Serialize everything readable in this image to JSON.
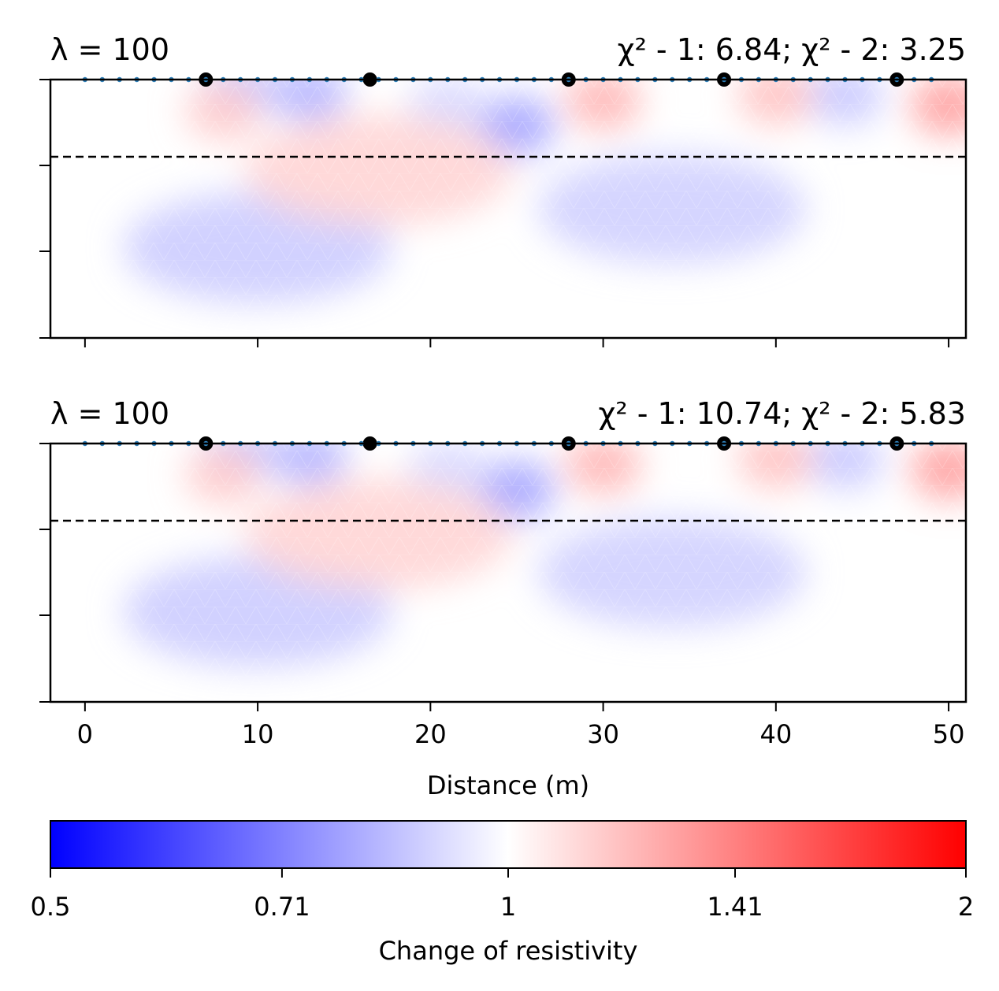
{
  "chart_data": {
    "type": "heatmap",
    "colormap": "bwr",
    "panels": [
      {
        "title_left": "λ = 100",
        "title_right": "χ² - 1: 6.84; χ² - 2: 3.25",
        "lambda": 100,
        "chi2_1": 6.84,
        "chi2_2": 3.25
      },
      {
        "title_left": "λ = 100",
        "title_right": "χ² - 1: 10.74; χ² - 2: 5.83",
        "lambda": 100,
        "chi2_1": 10.74,
        "chi2_2": 5.83
      }
    ],
    "xlim": [
      -2,
      51
    ],
    "xticks": [
      0,
      10,
      20,
      30,
      40,
      50
    ],
    "xlabel": "Distance (m)",
    "electrodes": {
      "start": 0,
      "end": 49,
      "spacing": 1
    },
    "boreholes_x": [
      7,
      16.5,
      28,
      37,
      47
    ],
    "colorbar": {
      "label": "Change of resistivity",
      "min": 0.5,
      "max": 2,
      "scale": "log",
      "ticks": [
        0.5,
        0.71,
        1,
        1.41,
        2
      ],
      "tick_labels": [
        "0.5",
        "0.71",
        "1",
        "1.41",
        "2"
      ]
    },
    "anomalies": [
      {
        "x": 25,
        "depth": 0.18,
        "value": 0.78
      },
      {
        "x": 13,
        "depth": 0.05,
        "value": 0.82
      },
      {
        "x": 9,
        "depth": 0.04,
        "value": 0.85
      },
      {
        "x": 44,
        "depth": 0.06,
        "value": 0.86
      },
      {
        "x": 21,
        "depth": 0.1,
        "value": 0.9
      },
      {
        "x": 10,
        "depth": 0.65,
        "value": 0.87
      },
      {
        "x": 34,
        "depth": 0.5,
        "value": 0.88
      },
      {
        "x": 30,
        "depth": 0.08,
        "value": 1.22
      },
      {
        "x": 50,
        "depth": 0.1,
        "value": 1.3
      },
      {
        "x": 40,
        "depth": 0.06,
        "value": 1.18
      },
      {
        "x": 17,
        "depth": 0.35,
        "value": 1.12
      },
      {
        "x": 8,
        "depth": 0.12,
        "value": 1.15
      }
    ]
  }
}
